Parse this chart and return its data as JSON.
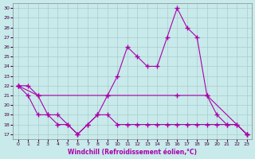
{
  "xlabel": "Windchill (Refroidissement éolien,°C)",
  "xlim": [
    -0.5,
    23.5
  ],
  "ylim": [
    16.5,
    30.5
  ],
  "yticks": [
    17,
    18,
    19,
    20,
    21,
    22,
    23,
    24,
    25,
    26,
    27,
    28,
    29,
    30
  ],
  "xticks": [
    0,
    1,
    2,
    3,
    4,
    5,
    6,
    7,
    8,
    9,
    10,
    11,
    12,
    13,
    14,
    15,
    16,
    17,
    18,
    19,
    20,
    21,
    22,
    23
  ],
  "bg_color": "#c8eaea",
  "line_color": "#aa00aa",
  "grid_color": "#aacccc",
  "line1_x": [
    0,
    1,
    2,
    3,
    4,
    5,
    6,
    7,
    8,
    9,
    10,
    11,
    12,
    13,
    14,
    15,
    16,
    17,
    18,
    19,
    20,
    21,
    22,
    23
  ],
  "line1_y": [
    22,
    22,
    21,
    19,
    19,
    18,
    17,
    18,
    19,
    21,
    23,
    26,
    25,
    24,
    24,
    27,
    30,
    28,
    27,
    21,
    19,
    18,
    18,
    17
  ],
  "line2_x": [
    0,
    2,
    9,
    16,
    19,
    23
  ],
  "line2_y": [
    22,
    21,
    21,
    21,
    21,
    17
  ],
  "line3_x": [
    0,
    1,
    2,
    3,
    4,
    5,
    6,
    7,
    8,
    9,
    10,
    11,
    12,
    13,
    14,
    15,
    16,
    17,
    18,
    19,
    20,
    21,
    22,
    23
  ],
  "line3_y": [
    22,
    21,
    19,
    19,
    18,
    18,
    17,
    18,
    19,
    19,
    18,
    18,
    18,
    18,
    18,
    18,
    18,
    18,
    18,
    18,
    18,
    18,
    18,
    17
  ]
}
